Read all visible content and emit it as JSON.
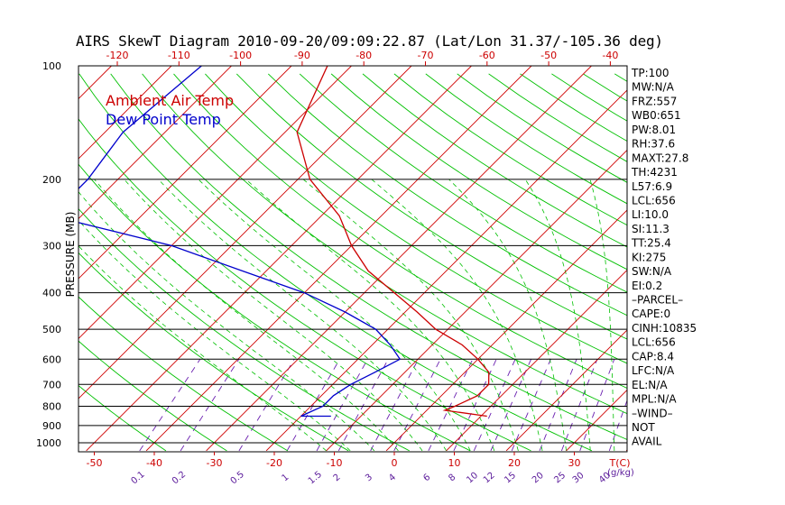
{
  "title": "AIRS SkewT Diagram 2010-09-20/09:09:22.87 (Lat/Lon 31.37/-105.36 deg)",
  "colors": {
    "ambient": "#cc0000",
    "dewpoint": "#0000cc",
    "isotherm": "#d00000",
    "dry_adiabat": "#00c000",
    "moist_adiabat": "#00c000",
    "mixing_ratio": "#6a1fb0",
    "isobar": "#000000",
    "bottom_axis": "#cc0000",
    "mixing_label": "#5a1a9a"
  },
  "chart_data": {
    "type": "line",
    "title": "AIRS SkewT Diagram 2010-09-20/09:09:22.87 (Lat/Lon 31.37/-105.36 deg)",
    "ylabel": "PRESSURE (MB)",
    "xlabel": "T(C)",
    "mixing_ratio_unit": "(g/kg)",
    "ylim": [
      1050,
      100
    ],
    "yscale": "log",
    "pressure_ticks": [
      100,
      200,
      300,
      400,
      500,
      600,
      700,
      800,
      900,
      1000
    ],
    "bottom_temp_ticks": [
      -50,
      -40,
      -30,
      -20,
      -10,
      0,
      10,
      20,
      30
    ],
    "top_temp_ticks": [
      -120,
      -110,
      -100,
      -90,
      -80,
      -70,
      -60,
      -50,
      -40
    ],
    "mixing_ratio_ticks": [
      "0.1",
      "0.2",
      "0.5",
      "1",
      "1.5",
      "2",
      "3",
      "4",
      "6",
      "8",
      "10",
      "12",
      "15",
      "20",
      "25",
      "30",
      "40"
    ],
    "legend": [
      "Ambient Air Temp",
      "Dew Point Temp"
    ],
    "legend_placement": "top-left",
    "series": [
      {
        "name": "Ambient Air Temp",
        "points": [
          {
            "p": 100,
            "t": -74
          },
          {
            "p": 150,
            "t": -68
          },
          {
            "p": 200,
            "t": -58
          },
          {
            "p": 250,
            "t": -47
          },
          {
            "p": 300,
            "t": -40
          },
          {
            "p": 350,
            "t": -33
          },
          {
            "p": 400,
            "t": -25
          },
          {
            "p": 450,
            "t": -18
          },
          {
            "p": 500,
            "t": -12
          },
          {
            "p": 550,
            "t": -5
          },
          {
            "p": 600,
            "t": 0
          },
          {
            "p": 650,
            "t": 4
          },
          {
            "p": 700,
            "t": 6
          },
          {
            "p": 750,
            "t": 6
          },
          {
            "p": 800,
            "t": 4
          },
          {
            "p": 820,
            "t": 3
          },
          {
            "p": 850,
            "t": 11
          }
        ]
      },
      {
        "name": "Dew Point Temp",
        "points": [
          {
            "p": 100,
            "t": -95
          },
          {
            "p": 150,
            "t": -97
          },
          {
            "p": 200,
            "t": -95
          },
          {
            "p": 250,
            "t": -95
          },
          {
            "p": 300,
            "t": -70
          },
          {
            "p": 350,
            "t": -54
          },
          {
            "p": 400,
            "t": -40
          },
          {
            "p": 450,
            "t": -30
          },
          {
            "p": 500,
            "t": -22
          },
          {
            "p": 550,
            "t": -17
          },
          {
            "p": 600,
            "t": -13
          },
          {
            "p": 650,
            "t": -15
          },
          {
            "p": 700,
            "t": -17
          },
          {
            "p": 750,
            "t": -18
          },
          {
            "p": 800,
            "t": -18
          },
          {
            "p": 850,
            "t": -20
          },
          {
            "p": 850,
            "t": -15
          }
        ]
      }
    ]
  },
  "stats": [
    "TP:100",
    "MW:N/A",
    "FRZ:557",
    "WB0:651",
    "PW:8.01",
    "RH:37.6",
    "MAXT:27.8",
    "TH:4231",
    "L57:6.9",
    "LCL:656",
    "LI:10.0",
    "SI:11.3",
    "TT:25.4",
    "KI:275",
    "SW:N/A",
    "EI:0.2",
    "–PARCEL–",
    "CAPE:0",
    "CINH:10835",
    "LCL:656",
    "CAP:8.4",
    "LFC:N/A",
    "EL:N/A",
    "MPL:N/A",
    "–WIND–",
    "NOT",
    "AVAIL"
  ]
}
